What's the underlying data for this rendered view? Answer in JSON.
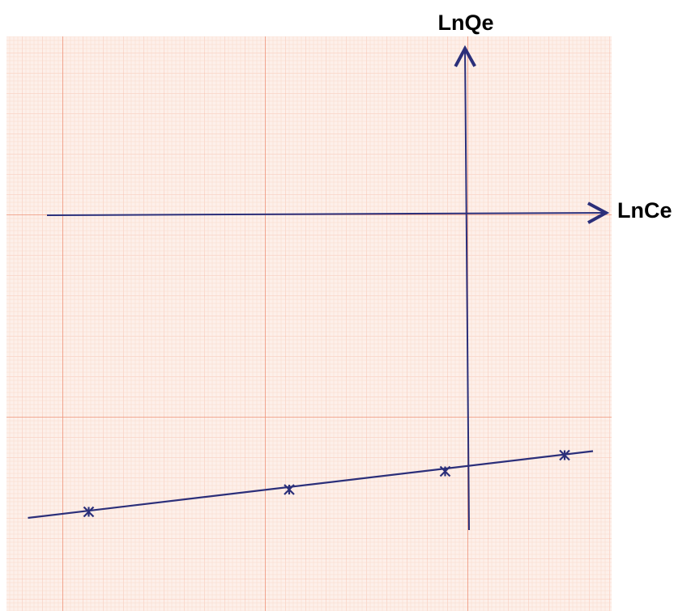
{
  "chart_data": {
    "type": "scatter",
    "x_label": "LnCe",
    "y_label": "LnQe",
    "xlim": [
      -22.76,
      7.12
    ],
    "ylim": [
      -19.6,
      8.8
    ],
    "color": "#2b2f7a",
    "x": [
      -18.7,
      -8.8,
      -1.1,
      4.8
    ],
    "values": [
      -14.7,
      -13.6,
      -12.7,
      -11.9
    ],
    "fit_line": {
      "x": [
        -21.7,
        6.2
      ],
      "values": [
        -15.0,
        -11.7
      ]
    }
  }
}
